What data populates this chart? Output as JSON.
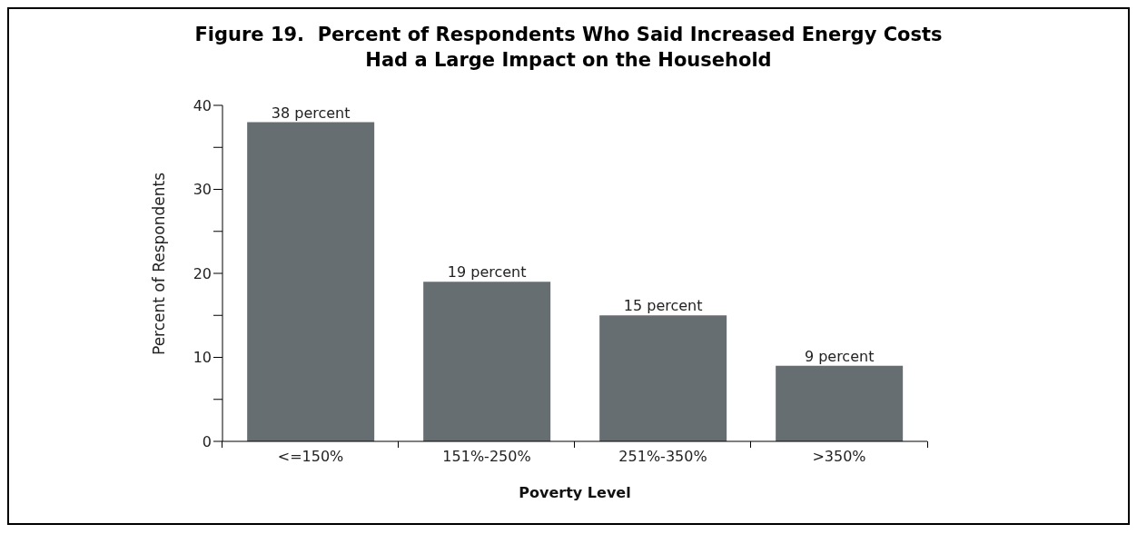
{
  "chart_data": {
    "type": "bar",
    "title": "Figure 19.  Percent of Respondents Who Said Increased Energy Costs\nHad a Large Impact on the Household",
    "xlabel": "Poverty Level",
    "ylabel": "Percent of Respondents",
    "categories": [
      "<=150%",
      "151%-250%",
      "251%-350%",
      ">350%"
    ],
    "values": [
      38,
      19,
      15,
      9
    ],
    "value_labels": [
      "38 percent",
      "19 percent",
      "15 percent",
      "9 percent"
    ],
    "color": "#676e71",
    "ylim": [
      0,
      40
    ],
    "yticks": [
      0,
      {
        "value": 5,
        "label": null
      },
      10,
      {
        "value": 15,
        "label": null
      },
      20,
      {
        "value": 25,
        "label": null
      },
      30,
      {
        "value": 35,
        "label": null
      },
      40
    ],
    "grid": false,
    "legend": false
  }
}
